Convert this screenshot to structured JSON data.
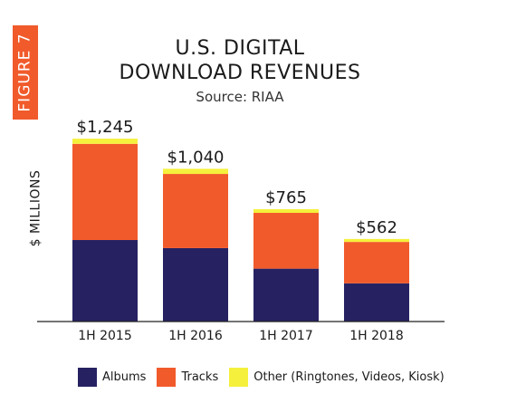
{
  "figure_label": "FIGURE 7",
  "chart_data": {
    "type": "bar",
    "stacked": true,
    "title_lines": [
      "U.S. DIGITAL",
      "DOWNLOAD REVENUES"
    ],
    "subtitle": "Source: RIAA",
    "ylabel": "$ MILLIONS",
    "xlabel": "",
    "categories": [
      "1H 2015",
      "1H 2016",
      "1H 2017",
      "1H 2018"
    ],
    "totals_labels": [
      "$1,245",
      "$1,040",
      "$765",
      "$562"
    ],
    "totals": [
      1245,
      1040,
      765,
      562
    ],
    "series": [
      {
        "name": "Albums",
        "color": "#262262",
        "values": [
          555,
          500,
          360,
          260
        ]
      },
      {
        "name": "Tracks",
        "color": "#F15A2B",
        "values": [
          655,
          505,
          380,
          282
        ]
      },
      {
        "name": "Other (Ringtones, Videos, Kiosk)",
        "color": "#F5F03C",
        "values": [
          35,
          35,
          25,
          20
        ]
      }
    ],
    "ylim": [
      0,
      1400
    ],
    "grid": false,
    "legend_position": "bottom"
  },
  "colors": {
    "figure_tag_bg": "#F15A2B",
    "axis": "#222222"
  }
}
